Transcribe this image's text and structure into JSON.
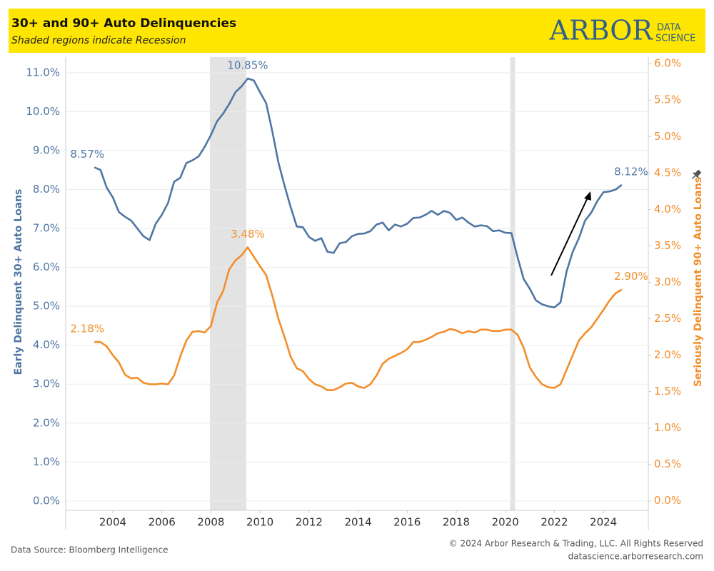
{
  "chart_data": {
    "type": "line",
    "title": "30+ and 90+ Auto Delinquencies",
    "subtitle": "Shaded regions indicate Recession",
    "logo": {
      "main": "ARBOR",
      "line1": "DATA",
      "line2": "SCIENCE"
    },
    "source": "Data Source: Bloomberg Intelligence",
    "copyright": "© 2024 Arbor Research & Trading, LLC. All Rights Reserved",
    "website": "datascience.arborresearch.com",
    "y_label": "Early Delinquent 30+ Auto Loans",
    "y2_label": "Seriously Delinquent 90+ Auto Loans",
    "x": [
      2003.25,
      2003.5,
      2003.75,
      2004,
      2004.25,
      2004.5,
      2004.75,
      2005,
      2005.25,
      2005.5,
      2005.75,
      2006,
      2006.25,
      2006.5,
      2006.75,
      2007,
      2007.25,
      2007.5,
      2007.75,
      2008,
      2008.25,
      2008.5,
      2008.75,
      2009,
      2009.25,
      2009.5,
      2009.75,
      2010,
      2010.25,
      2010.5,
      2010.75,
      2011,
      2011.25,
      2011.5,
      2011.75,
      2012,
      2012.25,
      2012.5,
      2012.75,
      2013,
      2013.25,
      2013.5,
      2013.75,
      2014,
      2014.25,
      2014.5,
      2014.75,
      2015,
      2015.25,
      2015.5,
      2015.75,
      2016,
      2016.25,
      2016.5,
      2016.75,
      2017,
      2017.25,
      2017.5,
      2017.75,
      2018,
      2018.25,
      2018.5,
      2018.75,
      2019,
      2019.25,
      2019.5,
      2019.75,
      2020,
      2020.25,
      2020.5,
      2020.75,
      2021,
      2021.25,
      2021.5,
      2021.75,
      2022,
      2022.25,
      2022.5,
      2022.75,
      2023,
      2023.25,
      2023.5,
      2023.75,
      2024,
      2024.25,
      2024.5,
      2024.75
    ],
    "series": [
      {
        "name": "Early Delinquent 30+ Auto Loans",
        "color": "#4f76a3",
        "axis": "y",
        "values": [
          8.57,
          8.5,
          8.05,
          7.8,
          7.42,
          7.3,
          7.2,
          7.0,
          6.8,
          6.7,
          7.12,
          7.35,
          7.65,
          8.2,
          8.3,
          8.68,
          8.75,
          8.85,
          9.1,
          9.4,
          9.75,
          9.95,
          10.2,
          10.5,
          10.65,
          10.85,
          10.8,
          10.5,
          10.22,
          9.5,
          8.7,
          8.1,
          7.55,
          7.05,
          7.03,
          6.78,
          6.68,
          6.75,
          6.4,
          6.37,
          6.62,
          6.65,
          6.8,
          6.86,
          6.87,
          6.93,
          7.1,
          7.15,
          6.95,
          7.1,
          7.05,
          7.12,
          7.27,
          7.28,
          7.35,
          7.45,
          7.35,
          7.45,
          7.4,
          7.22,
          7.28,
          7.15,
          7.05,
          7.08,
          7.06,
          6.93,
          6.95,
          6.89,
          6.88,
          6.26,
          5.7,
          5.45,
          5.15,
          5.05,
          5.0,
          4.97,
          5.1,
          5.9,
          6.4,
          6.75,
          7.2,
          7.4,
          7.7,
          7.93,
          7.95,
          8.0,
          8.12
        ],
        "value_labels": [
          "8.57%",
          null,
          null,
          null,
          null,
          null,
          null,
          null,
          null,
          null,
          null,
          null,
          null,
          null,
          null,
          null,
          null,
          null,
          null,
          null,
          null,
          null,
          null,
          null,
          null,
          "10.85%",
          null,
          null,
          null,
          null,
          null,
          null,
          null,
          null,
          null,
          null,
          null,
          null,
          null,
          null,
          null,
          null,
          null,
          null,
          null,
          null,
          null,
          null,
          null,
          null,
          null,
          null,
          null,
          null,
          null,
          null,
          null,
          null,
          null,
          null,
          null,
          null,
          null,
          null,
          null,
          null,
          null,
          null,
          null,
          null,
          null,
          null,
          null,
          null,
          null,
          null,
          null,
          null,
          null,
          null,
          null,
          null,
          null,
          null,
          null,
          null,
          "8.12%"
        ]
      },
      {
        "name": "Seriously Delinquent 90+ Auto Loans",
        "color": "#f28e2b",
        "axis": "y2",
        "values": [
          2.18,
          2.18,
          2.12,
          2.0,
          1.9,
          1.73,
          1.68,
          1.69,
          1.62,
          1.6,
          1.6,
          1.61,
          1.6,
          1.72,
          1.98,
          2.2,
          2.32,
          2.33,
          2.31,
          2.4,
          2.72,
          2.88,
          3.18,
          3.3,
          3.37,
          3.48,
          3.35,
          3.22,
          3.1,
          2.82,
          2.5,
          2.25,
          1.98,
          1.82,
          1.78,
          1.67,
          1.6,
          1.57,
          1.52,
          1.52,
          1.56,
          1.61,
          1.62,
          1.57,
          1.55,
          1.6,
          1.72,
          1.88,
          1.95,
          1.99,
          2.03,
          2.08,
          2.18,
          2.18,
          2.21,
          2.25,
          2.3,
          2.32,
          2.36,
          2.34,
          2.3,
          2.33,
          2.31,
          2.35,
          2.35,
          2.33,
          2.33,
          2.35,
          2.35,
          2.28,
          2.1,
          1.83,
          1.7,
          1.6,
          1.56,
          1.55,
          1.6,
          1.8,
          2.0,
          2.2,
          2.3,
          2.38,
          2.5,
          2.62,
          2.75,
          2.85,
          2.9
        ],
        "value_labels": [
          "2.18%",
          null,
          null,
          null,
          null,
          null,
          null,
          null,
          null,
          null,
          null,
          null,
          null,
          null,
          null,
          null,
          null,
          null,
          null,
          null,
          null,
          null,
          null,
          null,
          null,
          "3.48%",
          null,
          null,
          null,
          null,
          null,
          null,
          null,
          null,
          null,
          null,
          null,
          null,
          null,
          null,
          null,
          null,
          null,
          null,
          null,
          null,
          null,
          null,
          null,
          null,
          null,
          null,
          null,
          null,
          null,
          null,
          null,
          null,
          null,
          null,
          null,
          null,
          null,
          null,
          null,
          null,
          null,
          null,
          null,
          null,
          null,
          null,
          null,
          null,
          null,
          null,
          null,
          null,
          null,
          null,
          null,
          null,
          null,
          null,
          null,
          null,
          "2.90%"
        ]
      }
    ],
    "recessions": [
      [
        2007.96,
        2009.44
      ],
      [
        2020.2,
        2020.4
      ]
    ],
    "recession_color": "#e3e3e3",
    "xlim": [
      2002.08,
      2025.83
    ],
    "xticks": [
      2004,
      2006,
      2008,
      2010,
      2012,
      2014,
      2016,
      2018,
      2020,
      2022,
      2024
    ],
    "ylim": [
      -0.24,
      11.4
    ],
    "yticks": [
      {
        "value": 0,
        "label": "0.0%"
      },
      {
        "value": 1,
        "label": "1.0%"
      },
      {
        "value": 2,
        "label": "2.0%"
      },
      {
        "value": 3,
        "label": "3.0%"
      },
      {
        "value": 4,
        "label": "4.0%"
      },
      {
        "value": 5,
        "label": "5.0%"
      },
      {
        "value": 6,
        "label": "6.0%"
      },
      {
        "value": 7,
        "label": "7.0%"
      },
      {
        "value": 8,
        "label": "8.0%"
      },
      {
        "value": 9,
        "label": "9.0%"
      },
      {
        "value": 10,
        "label": "10.0%"
      },
      {
        "value": 11,
        "label": "11.0%"
      }
    ],
    "y2lim": [
      -0.13,
      6.09
    ],
    "y2ticks": [
      {
        "value": 0,
        "label": "0.0%"
      },
      {
        "value": 0.5,
        "label": "0.5%"
      },
      {
        "value": 1,
        "label": "1.0%"
      },
      {
        "value": 1.5,
        "label": "1.5%"
      },
      {
        "value": 2,
        "label": "2.0%"
      },
      {
        "value": 2.5,
        "label": "2.5%"
      },
      {
        "value": 3,
        "label": "3.0%"
      },
      {
        "value": 3.5,
        "label": "3.5%"
      },
      {
        "value": 4,
        "label": "4.0%"
      },
      {
        "value": 4.5,
        "label": "4.5%"
      },
      {
        "value": 5,
        "label": "5.0%"
      },
      {
        "value": 5.5,
        "label": "5.5%"
      },
      {
        "value": 6,
        "label": "6.0%"
      }
    ],
    "grid": true
  }
}
